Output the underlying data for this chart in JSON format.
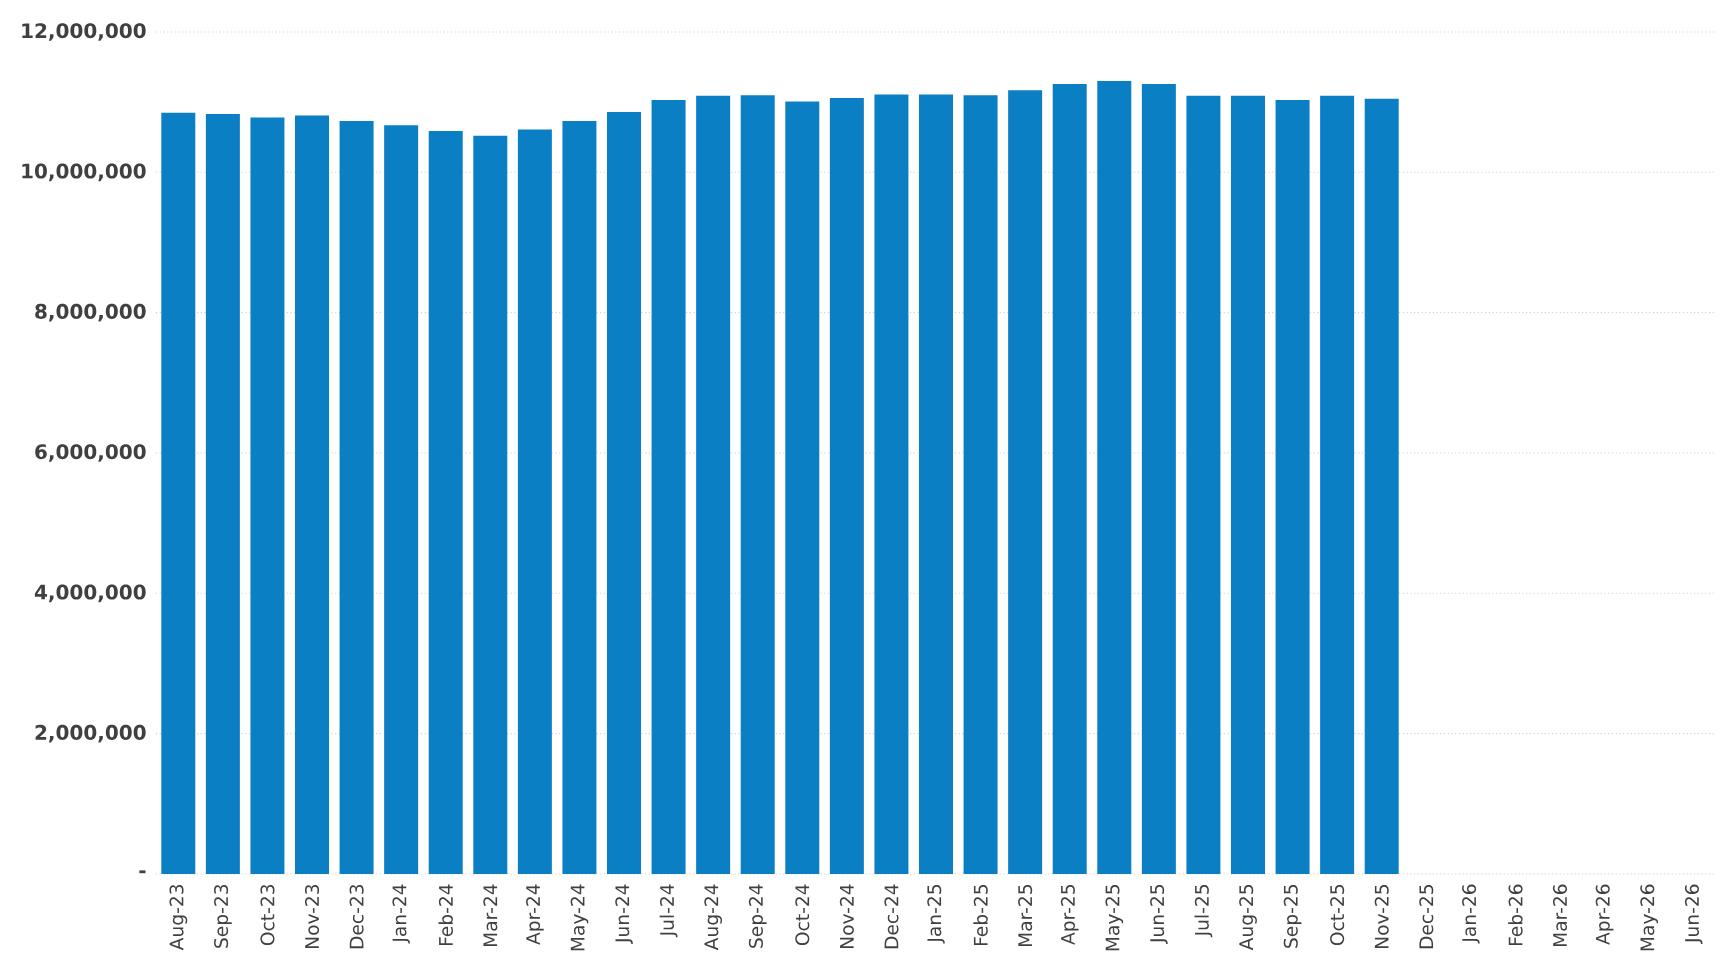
{
  "chart_data": {
    "type": "bar",
    "categories": [
      "Aug-23",
      "Sep-23",
      "Oct-23",
      "Nov-23",
      "Dec-23",
      "Jan-24",
      "Feb-24",
      "Mar-24",
      "Apr-24",
      "May-24",
      "Jun-24",
      "Jul-24",
      "Aug-24",
      "Sep-24",
      "Oct-24",
      "Nov-24",
      "Dec-24",
      "Jan-25",
      "Feb-25",
      "Mar-25",
      "Apr-25",
      "May-25",
      "Jun-25",
      "Jul-25",
      "Aug-25",
      "Sep-25",
      "Oct-25",
      "Nov-25",
      "Dec-25",
      "Jan-26",
      "Feb-26",
      "Mar-26",
      "Apr-26",
      "May-26",
      "Jun-26"
    ],
    "values": [
      10850000,
      10830000,
      10780000,
      10810000,
      10730000,
      10670000,
      10590000,
      10520000,
      10610000,
      10730000,
      10860000,
      11030000,
      11090000,
      11100000,
      11010000,
      11060000,
      11110000,
      11110000,
      11100000,
      11170000,
      11260000,
      11300000,
      11260000,
      11090000,
      11090000,
      11030000,
      11090000,
      11050000,
      null,
      null,
      null,
      null,
      null,
      null,
      null
    ],
    "color": "#0a7fc4",
    "ylim": [
      0,
      12000000
    ],
    "yticks": [
      {
        "value": 0,
        "label": "-"
      },
      {
        "value": 2000000,
        "label": "2,000,000"
      },
      {
        "value": 4000000,
        "label": "4,000,000"
      },
      {
        "value": 6000000,
        "label": "6,000,000"
      },
      {
        "value": 8000000,
        "label": "8,000,000"
      },
      {
        "value": 10000000,
        "label": "10,000,000"
      },
      {
        "value": 12000000,
        "label": "12,000,000"
      }
    ],
    "grid": "y"
  }
}
